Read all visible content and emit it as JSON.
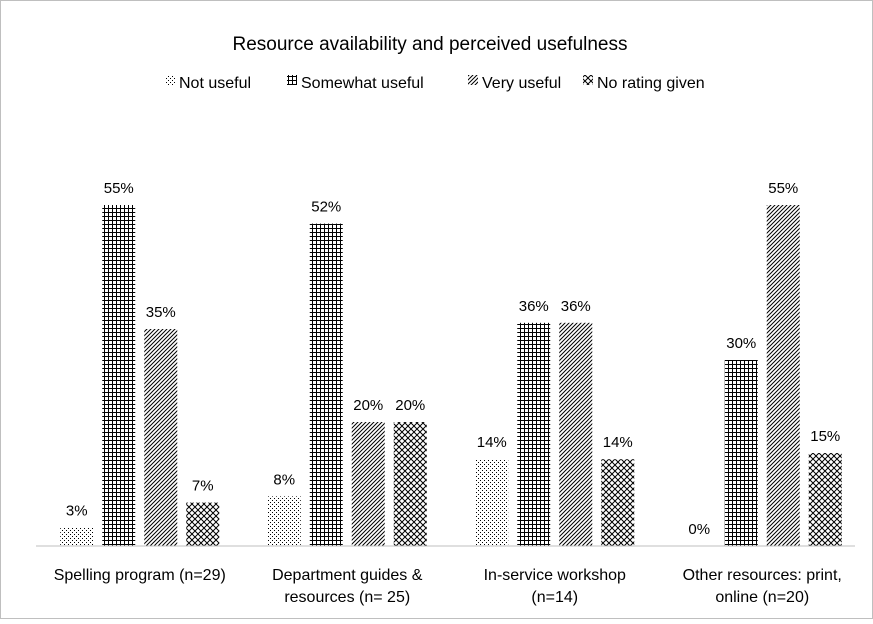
{
  "chart_data": {
    "type": "bar",
    "title": "Resource availability and perceived usefulness",
    "categories": [
      [
        "Spelling program (n=29)"
      ],
      [
        "Department guides &",
        "resources (n= 25)"
      ],
      [
        "In-service workshop",
        "(n=14)"
      ],
      [
        "Other resources: print,",
        "online (n=20)"
      ]
    ],
    "series": [
      {
        "name": "Not useful",
        "pattern": "dots",
        "values": [
          3,
          8,
          14,
          0
        ]
      },
      {
        "name": "Somewhat useful",
        "pattern": "grid",
        "values": [
          55,
          52,
          36,
          30
        ]
      },
      {
        "name": "Very useful",
        "pattern": "diagonal",
        "values": [
          35,
          20,
          36,
          55
        ]
      },
      {
        "name": "No rating given",
        "pattern": "crosshatch",
        "values": [
          7,
          20,
          14,
          15
        ]
      }
    ],
    "value_suffix": "%",
    "ylim": [
      0,
      60
    ],
    "legend_position": "top",
    "grid": false,
    "colors": {
      "ink": "#000000",
      "border": "#bfbfbf",
      "axis": "#bfbfbf"
    }
  }
}
